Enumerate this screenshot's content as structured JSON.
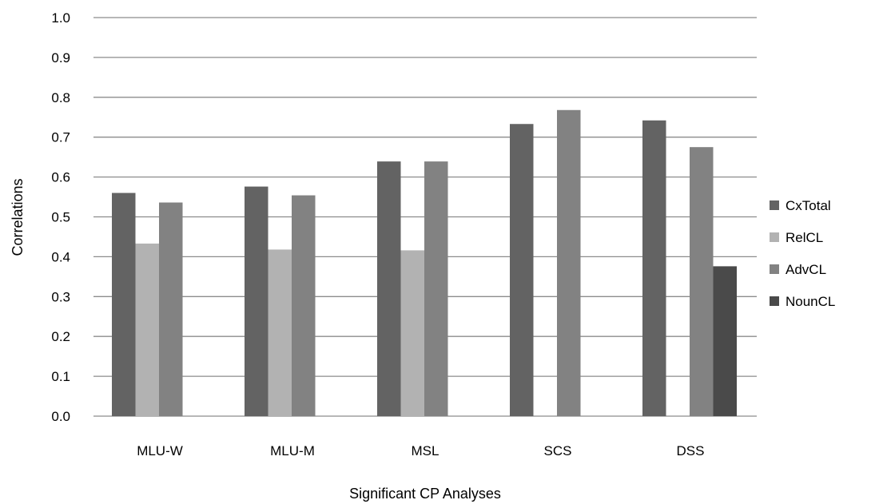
{
  "chart_data": {
    "type": "bar",
    "xlabel": "Significant CP Analyses",
    "ylabel": "Correlations",
    "ylim": [
      0,
      1
    ],
    "ytick_step": 0.1,
    "yticks": [
      "0.0",
      "0.1",
      "0.2",
      "0.3",
      "0.4",
      "0.5",
      "0.6",
      "0.7",
      "0.8",
      "0.9",
      "1.0"
    ],
    "grid": true,
    "legend_position": "right",
    "categories": [
      "MLU-W",
      "MLU-M",
      "MSL",
      "SCS",
      "DSS"
    ],
    "series": [
      {
        "name": "CxTotal",
        "color": "#636363",
        "values": [
          0.56,
          0.576,
          0.639,
          0.733,
          0.742
        ]
      },
      {
        "name": "RelCL",
        "color": "#b2b2b2",
        "values": [
          0.433,
          0.418,
          0.416,
          null,
          null
        ]
      },
      {
        "name": "AdvCL",
        "color": "#828282",
        "values": [
          0.536,
          0.554,
          0.639,
          0.768,
          0.675
        ]
      },
      {
        "name": "NounCL",
        "color": "#4a4a4a",
        "values": [
          null,
          null,
          null,
          null,
          0.376
        ]
      }
    ]
  }
}
